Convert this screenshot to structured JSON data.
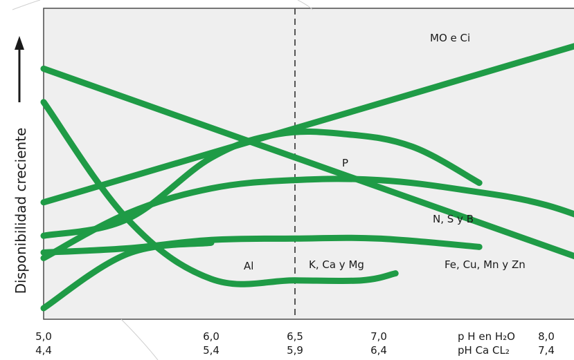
{
  "chart_data": {
    "type": "line",
    "ylabel": "Disponibilidad creciente",
    "x_scale_1_label": "p H en H₂O",
    "x_scale_2_label": "pH Ca CL₂",
    "x_ticks_h2o": [
      "5,0",
      "6,0",
      "6,5",
      "7,0",
      "8,0"
    ],
    "x_ticks_cacl2": [
      "4,4",
      "5,4",
      "5,9",
      "6,4",
      "7,4"
    ],
    "x_tick_values": [
      5.0,
      6.0,
      6.5,
      7.0,
      8.0
    ],
    "xlim": [
      5.0,
      9.0
    ],
    "ylim": [
      0,
      100
    ],
    "reference_line_x": 6.5,
    "grid": false,
    "line_color": "#1f9b46",
    "background": "#efefef",
    "series": [
      {
        "name": "MO e Ci",
        "points": [
          [
            5.0,
            38
          ],
          [
            8.5,
            100
          ]
        ]
      },
      {
        "name": "P",
        "points": [
          [
            5.0,
            26
          ],
          [
            5.5,
            32
          ],
          [
            6.0,
            54
          ],
          [
            6.4,
            62.5
          ],
          [
            6.8,
            62.5
          ],
          [
            7.2,
            58
          ],
          [
            7.6,
            45
          ]
        ]
      },
      {
        "name": "N, S y B",
        "points": [
          [
            5.0,
            18
          ],
          [
            5.5,
            34
          ],
          [
            6.0,
            43
          ],
          [
            6.5,
            46
          ],
          [
            7.0,
            46
          ],
          [
            7.5,
            42.5
          ],
          [
            8.0,
            37
          ],
          [
            8.5,
            26
          ]
        ]
      },
      {
        "name": "K, Ca y Mg",
        "points": [
          [
            5.0,
            20
          ],
          [
            5.5,
            21.5
          ],
          [
            6.0,
            24.5
          ],
          [
            6.5,
            25
          ],
          [
            7.0,
            25
          ],
          [
            7.6,
            22
          ]
        ]
      },
      {
        "name": "Fe, Cu, Mn y Zn",
        "points": [
          [
            5.0,
            86
          ],
          [
            8.6,
            9.5
          ]
        ]
      },
      {
        "name": "Al",
        "points": [
          [
            5.0,
            74
          ],
          [
            5.5,
            32
          ],
          [
            6.0,
            10.5
          ],
          [
            6.5,
            10
          ],
          [
            6.9,
            10
          ],
          [
            7.1,
            12.5
          ]
        ]
      },
      {
        "name": "",
        "points": [
          [
            5.0,
            0
          ],
          [
            5.5,
            19.5
          ],
          [
            6.0,
            23.5
          ]
        ]
      }
    ]
  }
}
